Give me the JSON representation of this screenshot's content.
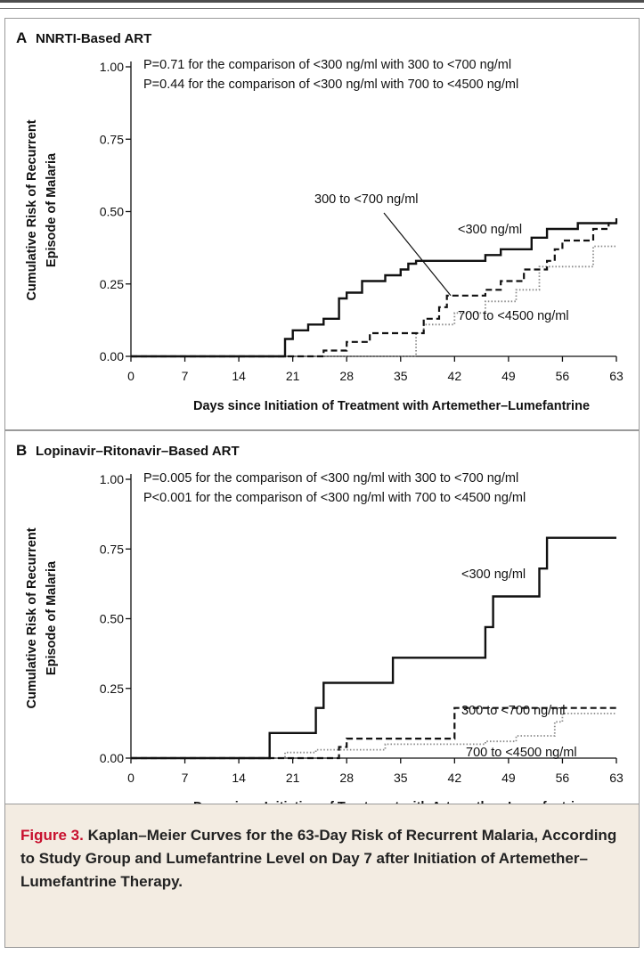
{
  "colors": {
    "caption_background": "#f3ece2",
    "caption_label": "#c8102e",
    "curve": "#111111",
    "dotted_curve": "#8a8a8a"
  },
  "caption": {
    "label": "Figure 3.",
    "text": "Kaplan–Meier Curves for the 63-Day Risk of Recurrent Malaria, According to Study Group and Lumefantrine Level on Day 7 after Initiation of Artemether–Lumefantrine Therapy."
  },
  "chart_data": [
    {
      "type": "line",
      "step": true,
      "panel_letter": "A",
      "title": "NNRTI-Based ART",
      "xlabel": "Days since Initiation of Treatment with Artemether–Lumefantrine",
      "ylabel_lines": [
        "Cumulative Risk of Recurrent",
        "Episode of Malaria"
      ],
      "xlim": [
        0,
        63
      ],
      "ylim": [
        0,
        1
      ],
      "x_ticks": [
        0,
        7,
        14,
        21,
        28,
        35,
        42,
        49,
        56,
        63
      ],
      "y_ticks": [
        "0.00",
        "0.25",
        "0.50",
        "0.75",
        "1.00"
      ],
      "grid": false,
      "annotations": [
        "P=0.71 for the comparison of <300 ng/ml with 300 to <700 ng/ml",
        "P=0.44 for the comparison of <300 ng/ml with 700 to <4500 ng/ml"
      ],
      "series": [
        {
          "name": "<300 ng/ml",
          "style": "solid",
          "points": [
            [
              0,
              0
            ],
            [
              20,
              0
            ],
            [
              20,
              0.06
            ],
            [
              21,
              0.06
            ],
            [
              21,
              0.09
            ],
            [
              23,
              0.09
            ],
            [
              23,
              0.11
            ],
            [
              25,
              0.11
            ],
            [
              25,
              0.13
            ],
            [
              27,
              0.13
            ],
            [
              27,
              0.2
            ],
            [
              28,
              0.2
            ],
            [
              28,
              0.22
            ],
            [
              30,
              0.22
            ],
            [
              30,
              0.26
            ],
            [
              33,
              0.26
            ],
            [
              33,
              0.28
            ],
            [
              35,
              0.28
            ],
            [
              35,
              0.3
            ],
            [
              36,
              0.3
            ],
            [
              36,
              0.32
            ],
            [
              37,
              0.32
            ],
            [
              37,
              0.33
            ],
            [
              46,
              0.33
            ],
            [
              46,
              0.35
            ],
            [
              48,
              0.35
            ],
            [
              48,
              0.37
            ],
            [
              52,
              0.37
            ],
            [
              52,
              0.41
            ],
            [
              54,
              0.41
            ],
            [
              54,
              0.44
            ],
            [
              58,
              0.44
            ],
            [
              58,
              0.46
            ],
            [
              63,
              0.46
            ]
          ]
        },
        {
          "name": "300 to <700 ng/ml",
          "style": "dashed",
          "points": [
            [
              0,
              0
            ],
            [
              21,
              0
            ],
            [
              25,
              0
            ],
            [
              25,
              0.02
            ],
            [
              28,
              0.02
            ],
            [
              28,
              0.05
            ],
            [
              31,
              0.05
            ],
            [
              31,
              0.08
            ],
            [
              38,
              0.08
            ],
            [
              38,
              0.13
            ],
            [
              40,
              0.13
            ],
            [
              40,
              0.17
            ],
            [
              41,
              0.17
            ],
            [
              41,
              0.21
            ],
            [
              46,
              0.21
            ],
            [
              46,
              0.23
            ],
            [
              48,
              0.23
            ],
            [
              48,
              0.26
            ],
            [
              51,
              0.26
            ],
            [
              51,
              0.3
            ],
            [
              54,
              0.3
            ],
            [
              54,
              0.33
            ],
            [
              55,
              0.33
            ],
            [
              55,
              0.37
            ],
            [
              56,
              0.37
            ],
            [
              56,
              0.4
            ],
            [
              60,
              0.4
            ],
            [
              60,
              0.44
            ],
            [
              62,
              0.44
            ],
            [
              62,
              0.46
            ],
            [
              63,
              0.46
            ],
            [
              63,
              0.48
            ]
          ]
        },
        {
          "name": "700 to <4500 ng/ml",
          "style": "dotted",
          "points": [
            [
              0,
              0
            ],
            [
              37,
              0
            ],
            [
              37,
              0.08
            ],
            [
              38,
              0.08
            ],
            [
              38,
              0.11
            ],
            [
              42,
              0.11
            ],
            [
              42,
              0.15
            ],
            [
              46,
              0.15
            ],
            [
              46,
              0.19
            ],
            [
              50,
              0.19
            ],
            [
              50,
              0.23
            ],
            [
              53,
              0.23
            ],
            [
              53,
              0.31
            ],
            [
              60,
              0.31
            ],
            [
              60,
              0.38
            ],
            [
              63,
              0.38
            ]
          ]
        }
      ]
    },
    {
      "type": "line",
      "step": true,
      "panel_letter": "B",
      "title": "Lopinavir–Ritonavir–Based ART",
      "xlabel": "Days since Initiation of Treatment with Artemether–Lumefantrine",
      "ylabel_lines": [
        "Cumulative Risk of Recurrent",
        "Episode of Malaria"
      ],
      "xlim": [
        0,
        63
      ],
      "ylim": [
        0,
        1
      ],
      "x_ticks": [
        0,
        7,
        14,
        21,
        28,
        35,
        42,
        49,
        56,
        63
      ],
      "y_ticks": [
        "0.00",
        "0.25",
        "0.50",
        "0.75",
        "1.00"
      ],
      "grid": false,
      "annotations": [
        "P=0.005 for the comparison of <300 ng/ml with 300 to <700 ng/ml",
        "P<0.001 for the comparison of <300 ng/ml with 700 to <4500 ng/ml"
      ],
      "series": [
        {
          "name": "<300 ng/ml",
          "style": "solid",
          "points": [
            [
              0,
              0
            ],
            [
              18,
              0
            ],
            [
              18,
              0.09
            ],
            [
              24,
              0.09
            ],
            [
              24,
              0.18
            ],
            [
              25,
              0.18
            ],
            [
              25,
              0.27
            ],
            [
              34,
              0.27
            ],
            [
              34,
              0.36
            ],
            [
              46,
              0.36
            ],
            [
              46,
              0.47
            ],
            [
              47,
              0.47
            ],
            [
              47,
              0.58
            ],
            [
              53,
              0.58
            ],
            [
              53,
              0.68
            ],
            [
              54,
              0.68
            ],
            [
              54,
              0.79
            ],
            [
              63,
              0.79
            ]
          ]
        },
        {
          "name": "300 to <700 ng/ml",
          "style": "dashed",
          "points": [
            [
              0,
              0
            ],
            [
              27,
              0
            ],
            [
              27,
              0.04
            ],
            [
              28,
              0.04
            ],
            [
              28,
              0.07
            ],
            [
              42,
              0.07
            ],
            [
              42,
              0.18
            ],
            [
              63,
              0.18
            ]
          ]
        },
        {
          "name": "700 to <4500 ng/ml",
          "style": "dotted",
          "points": [
            [
              0,
              0
            ],
            [
              20,
              0
            ],
            [
              20,
              0.02
            ],
            [
              24,
              0.02
            ],
            [
              24,
              0.03
            ],
            [
              33,
              0.03
            ],
            [
              33,
              0.05
            ],
            [
              46,
              0.05
            ],
            [
              46,
              0.06
            ],
            [
              50,
              0.06
            ],
            [
              50,
              0.08
            ],
            [
              55,
              0.08
            ],
            [
              55,
              0.13
            ],
            [
              56,
              0.13
            ],
            [
              56,
              0.16
            ],
            [
              63,
              0.16
            ]
          ]
        }
      ]
    }
  ]
}
